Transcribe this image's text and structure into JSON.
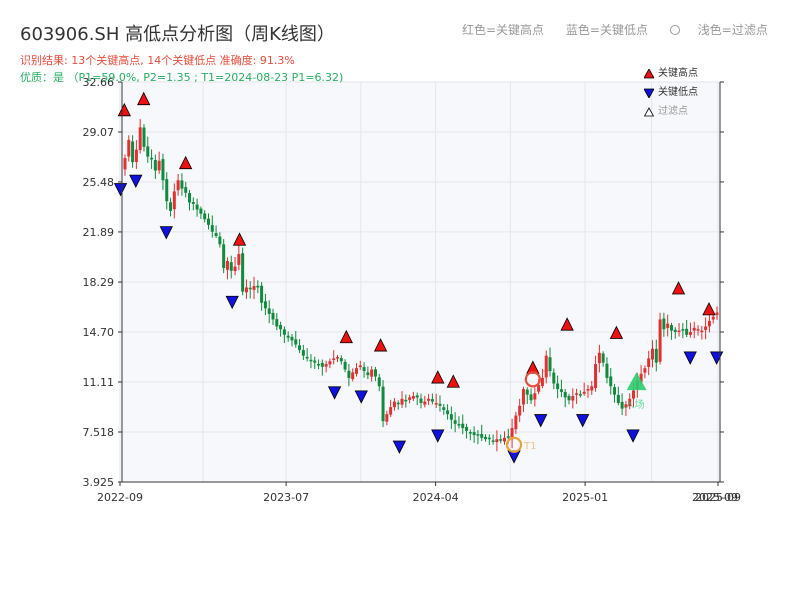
{
  "header": {
    "title": "603906.SH 高低点分析图（周K线图）",
    "result_line": "识别结果: 13个关键高点, 14个关键低点  准确度: 91.3%",
    "quality_line": "优质：是 （P1=59.0%, P2=1.35 ; T1=2024-08-23 P1=6.32)",
    "legend_top": [
      "红色=关键高点",
      "蓝色=关键低点",
      "浅色=过滤点"
    ]
  },
  "legend": {
    "high": "关键高点",
    "low": "关键低点",
    "filtered": "过滤点"
  },
  "colors": {
    "up": "#e03030",
    "down": "#118a3e",
    "high_marker": "#ee1111",
    "low_marker": "#1111dd",
    "plot_bg": "#f7f8fb",
    "grid": "#e3e6ec",
    "axis": "#333333",
    "annotation_orange": "#e8a33d",
    "annotation_red": "#e74c3c",
    "annotation_green": "#2ecc71"
  },
  "chart_data": {
    "type": "candlestick",
    "y_ticks": [
      "3.925",
      "7.518",
      "11.11",
      "14.70",
      "18.29",
      "21.89",
      "25.48",
      "29.07",
      "32.66"
    ],
    "ylim": [
      3.925,
      32.66
    ],
    "x_ticks": [
      "2022-09",
      "2023-07",
      "2024-04",
      "2025-01",
      "2025-09"
    ],
    "xlim": [
      "2022-09",
      "2025-09"
    ],
    "x_tick_overlap_label": "2025-09",
    "key_highs": [
      {
        "date": "2022-09-09",
        "value": 29.8
      },
      {
        "date": "2022-10-14",
        "value": 30.6
      },
      {
        "date": "2022-12-30",
        "value": 26.0
      },
      {
        "date": "2023-04-07",
        "value": 20.5
      },
      {
        "date": "2023-10-20",
        "value": 13.5
      },
      {
        "date": "2023-12-22",
        "value": 12.9
      },
      {
        "date": "2024-04-05",
        "value": 10.6
      },
      {
        "date": "2024-05-03",
        "value": 10.3
      },
      {
        "date": "2024-09-27",
        "value": 11.3
      },
      {
        "date": "2024-11-29",
        "value": 14.4
      },
      {
        "date": "2025-02-28",
        "value": 13.8
      },
      {
        "date": "2025-06-20",
        "value": 17.0
      },
      {
        "date": "2025-08-15",
        "value": 15.5
      }
    ],
    "key_lows": [
      {
        "date": "2022-09-02",
        "value": 25.8
      },
      {
        "date": "2022-09-30",
        "value": 26.4
      },
      {
        "date": "2022-11-25",
        "value": 22.7
      },
      {
        "date": "2023-03-24",
        "value": 17.7
      },
      {
        "date": "2023-09-29",
        "value": 11.2
      },
      {
        "date": "2023-11-17",
        "value": 10.9
      },
      {
        "date": "2024-01-26",
        "value": 7.3
      },
      {
        "date": "2024-04-05",
        "value": 8.1
      },
      {
        "date": "2024-08-23",
        "value": 6.6
      },
      {
        "date": "2024-10-11",
        "value": 9.2
      },
      {
        "date": "2024-12-27",
        "value": 9.2
      },
      {
        "date": "2025-03-28",
        "value": 8.1
      },
      {
        "date": "2025-07-11",
        "value": 13.7
      },
      {
        "date": "2025-08-29",
        "value": 13.7
      }
    ],
    "annotations": [
      {
        "kind": "orange-circle",
        "date": "2024-08-23",
        "value": 6.6,
        "label": "T1"
      },
      {
        "kind": "red-circle",
        "date": "2024-09-27",
        "value": 11.3,
        "label": "T"
      },
      {
        "kind": "green-triangle",
        "date": "2025-04-04",
        "value": 11.1,
        "label": "入场"
      }
    ],
    "weekly_closes": [
      27.2,
      28.5,
      26.9,
      27.8,
      29.4,
      28.0,
      27.3,
      27.1,
      26.3,
      27.0,
      25.6,
      24.1,
      23.4,
      24.8,
      25.6,
      25.0,
      24.7,
      24.0,
      23.9,
      23.5,
      23.2,
      22.8,
      22.4,
      21.9,
      21.6,
      21.0,
      19.3,
      19.8,
      19.1,
      19.4,
      20.3,
      17.6,
      17.9,
      17.8,
      18.0,
      17.9,
      16.8,
      16.4,
      16.0,
      15.6,
      15.1,
      14.9,
      14.5,
      14.3,
      14.1,
      13.8,
      13.4,
      13.0,
      12.8,
      12.7,
      12.5,
      12.4,
      12.2,
      12.4,
      12.6,
      12.8,
      12.9,
      12.6,
      12.0,
      11.4,
      11.8,
      12.1,
      12.3,
      11.9,
      11.6,
      12.0,
      11.5,
      10.8,
      8.3,
      8.8,
      9.3,
      9.7,
      9.6,
      9.9,
      9.8,
      10.0,
      10.1,
      10.0,
      9.6,
      9.7,
      9.9,
      9.7,
      9.6,
      9.4,
      9.1,
      8.8,
      8.4,
      8.1,
      8.0,
      7.8,
      7.6,
      7.5,
      7.3,
      7.3,
      7.1,
      7.0,
      7.0,
      6.9,
      7.0,
      6.9,
      7.1,
      7.1,
      7.8,
      8.7,
      9.4,
      10.6,
      10.2,
      9.8,
      10.3,
      10.9,
      11.4,
      13.0,
      11.9,
      11.0,
      10.6,
      10.4,
      10.0,
      9.8,
      10.1,
      10.3,
      10.2,
      10.4,
      10.6,
      10.8,
      12.4,
      13.2,
      12.5,
      11.4,
      10.8,
      10.2,
      9.6,
      9.2,
      9.5,
      9.9,
      10.5,
      11.2,
      11.7,
      12.1,
      12.8,
      13.5,
      12.5,
      15.6,
      14.9,
      15.3,
      14.8,
      14.7,
      14.8,
      14.9,
      14.5,
      14.7,
      15.0,
      14.9,
      14.8,
      15.1,
      15.5,
      15.8,
      16.1
    ]
  }
}
